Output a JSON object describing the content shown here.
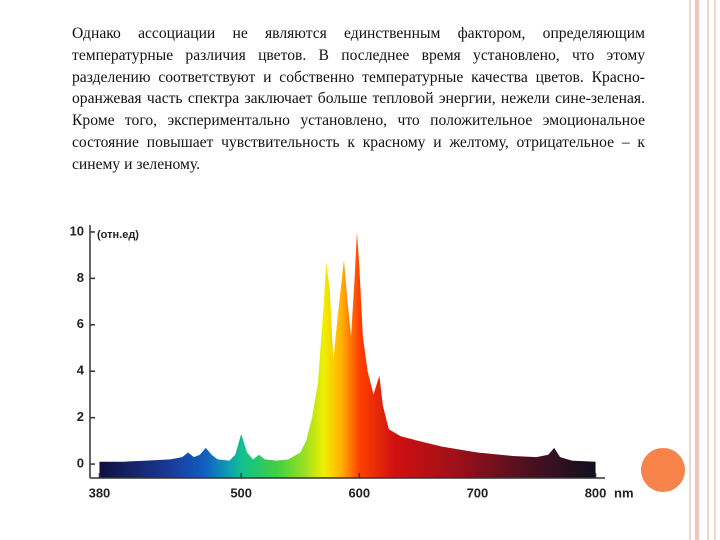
{
  "text": {
    "paragraph": "Однако ассоциации не являются единственным фактором, определяющим температурные различия цветов. В последнее время установлено, что этому разделению соответствуют и собственно температурные качества цветов. Красно-оранжевая часть спектра заключает больше тепловой энергии, нежели сине-зеленая. Кроме того, экспериментально установлено, что положительное эмоциональное состояние повышает чувствительность к красному и желтому, отрицательное – к синему и зеленому."
  },
  "chart_data": {
    "type": "area",
    "ylabel": "(отн.ед)",
    "xlabel": "nm",
    "x": [
      380,
      400,
      420,
      440,
      450,
      455,
      460,
      465,
      470,
      475,
      480,
      490,
      495,
      500,
      505,
      510,
      515,
      520,
      530,
      540,
      550,
      555,
      560,
      565,
      570,
      572,
      575,
      578,
      582,
      587,
      590,
      593,
      596,
      598,
      600,
      603,
      607,
      612,
      617,
      620,
      625,
      635,
      650,
      670,
      700,
      730,
      750,
      760,
      765,
      770,
      780,
      800
    ],
    "values": [
      0.1,
      0.1,
      0.15,
      0.2,
      0.3,
      0.5,
      0.3,
      0.4,
      0.7,
      0.4,
      0.2,
      0.15,
      0.4,
      1.3,
      0.5,
      0.2,
      0.4,
      0.2,
      0.15,
      0.2,
      0.5,
      1.0,
      2.0,
      3.5,
      7.0,
      8.7,
      7.5,
      4.5,
      6.5,
      8.8,
      7.0,
      5.5,
      8.0,
      10.0,
      8.5,
      5.5,
      4.0,
      3.0,
      3.8,
      2.5,
      1.5,
      1.2,
      1.0,
      0.75,
      0.5,
      0.35,
      0.3,
      0.4,
      0.7,
      0.3,
      0.15,
      0.1
    ],
    "xlim": [
      372,
      808
    ],
    "ylim": [
      -0.6,
      10.3
    ],
    "xticks": [
      380,
      500,
      600,
      700,
      800
    ],
    "yticks": [
      0,
      2,
      4,
      6,
      8,
      10
    ],
    "color_stops": [
      {
        "x": 380,
        "color": "#101040"
      },
      {
        "x": 440,
        "color": "#1a3a9a"
      },
      {
        "x": 470,
        "color": "#1060c0"
      },
      {
        "x": 490,
        "color": "#10a0b0"
      },
      {
        "x": 500,
        "color": "#10c090"
      },
      {
        "x": 530,
        "color": "#40d040"
      },
      {
        "x": 555,
        "color": "#a0e020"
      },
      {
        "x": 570,
        "color": "#f0f000"
      },
      {
        "x": 585,
        "color": "#ffb000"
      },
      {
        "x": 600,
        "color": "#ff4000"
      },
      {
        "x": 630,
        "color": "#d01010"
      },
      {
        "x": 680,
        "color": "#a01018"
      },
      {
        "x": 740,
        "color": "#501020"
      },
      {
        "x": 800,
        "color": "#101020"
      }
    ]
  }
}
